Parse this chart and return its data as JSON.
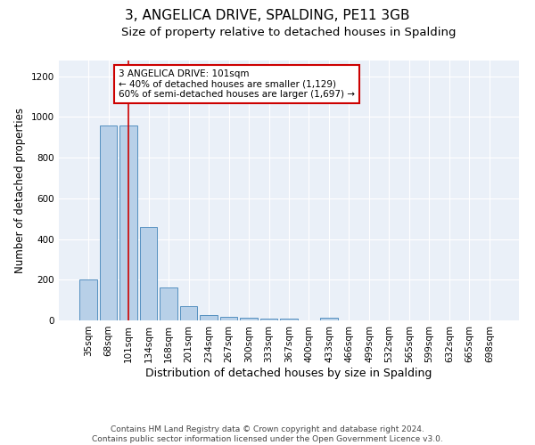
{
  "title": "3, ANGELICA DRIVE, SPALDING, PE11 3GB",
  "subtitle": "Size of property relative to detached houses in Spalding",
  "xlabel": "Distribution of detached houses by size in Spalding",
  "ylabel": "Number of detached properties",
  "categories": [
    "35sqm",
    "68sqm",
    "101sqm",
    "134sqm",
    "168sqm",
    "201sqm",
    "234sqm",
    "267sqm",
    "300sqm",
    "333sqm",
    "367sqm",
    "400sqm",
    "433sqm",
    "466sqm",
    "499sqm",
    "532sqm",
    "565sqm",
    "599sqm",
    "632sqm",
    "665sqm",
    "698sqm"
  ],
  "values": [
    200,
    960,
    960,
    460,
    160,
    70,
    25,
    18,
    15,
    10,
    8,
    0,
    15,
    0,
    0,
    0,
    0,
    0,
    0,
    0,
    0
  ],
  "bar_color": "#b8d0e8",
  "bar_edge_color": "#5590c0",
  "red_line_index": 2,
  "red_line_color": "#cc0000",
  "annotation_text": "3 ANGELICA DRIVE: 101sqm\n← 40% of detached houses are smaller (1,129)\n60% of semi-detached houses are larger (1,697) →",
  "annotation_box_color": "#ffffff",
  "annotation_box_edge": "#cc0000",
  "ylim": [
    0,
    1280
  ],
  "yticks": [
    0,
    200,
    400,
    600,
    800,
    1000,
    1200
  ],
  "background_color": "#eaf0f8",
  "footer": "Contains HM Land Registry data © Crown copyright and database right 2024.\nContains public sector information licensed under the Open Government Licence v3.0.",
  "title_fontsize": 11,
  "subtitle_fontsize": 9.5,
  "xlabel_fontsize": 9,
  "ylabel_fontsize": 8.5,
  "tick_fontsize": 7.5,
  "footer_fontsize": 6.5
}
